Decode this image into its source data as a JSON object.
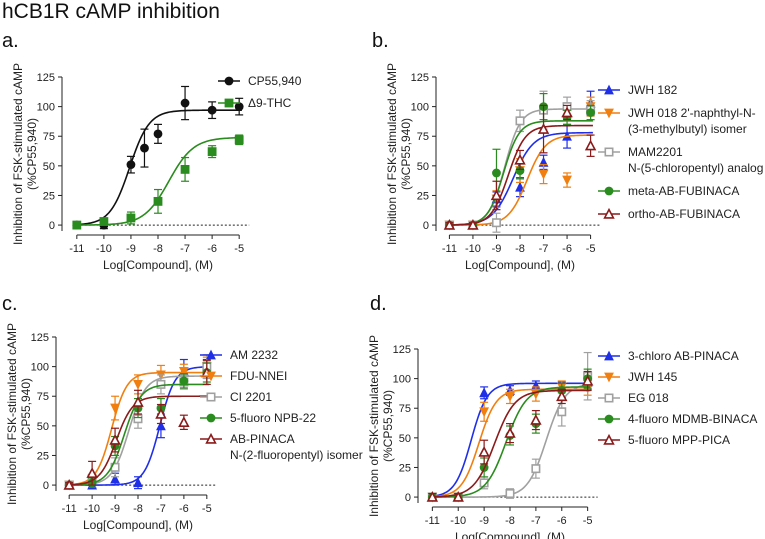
{
  "figure_title": "hCB1R cAMP inhibition",
  "colors": {
    "black": "#111111",
    "green": "#2a8c1e",
    "blue": "#1f2fe8",
    "orange": "#f07f10",
    "gray": "#a0a0a0",
    "darkred": "#8b1a1a",
    "axis": "#222222"
  },
  "chart_data": [
    {
      "id": "a",
      "panel_label": "a.",
      "type": "line",
      "xlabel": "Log[Compound], (M)",
      "ylabel": "Inhibition of FSK-stimulated cAMP",
      "ylabel2": "(%CP55,940)",
      "xlim": [
        -11.4,
        -4.6
      ],
      "ylim": [
        -5,
        125
      ],
      "xticks": [
        -11,
        -10,
        -9,
        -8,
        -7,
        -6,
        -5
      ],
      "yticks": [
        0,
        25,
        50,
        75,
        100,
        125
      ],
      "baseline": 0,
      "series": [
        {
          "name": "CP55,940",
          "color": "#111111",
          "marker": "circle",
          "x": [
            -11,
            -10,
            -9,
            -8.5,
            -8,
            -7,
            -6,
            -5
          ],
          "y": [
            0,
            0,
            51,
            65,
            77,
            103,
            97,
            100
          ],
          "err": [
            3,
            3,
            7,
            16,
            8,
            14,
            7,
            7
          ],
          "fit": {
            "bottom": 0,
            "top": 97,
            "ec50": -9.05,
            "hill": 1.2
          }
        },
        {
          "name": "Δ9-THC",
          "color": "#2a8c1e",
          "marker": "square",
          "x": [
            -11,
            -10,
            -9,
            -8,
            -7,
            -6,
            -5
          ],
          "y": [
            0,
            3,
            6,
            20,
            47,
            62,
            72
          ],
          "err": [
            2,
            3,
            5,
            10,
            10,
            5,
            4
          ],
          "fit": {
            "bottom": 0,
            "top": 74,
            "ec50": -7.6,
            "hill": 0.95
          }
        }
      ]
    },
    {
      "id": "b",
      "panel_label": "b.",
      "type": "line",
      "xlabel": "Log[Compound], (M)",
      "ylabel": "Inhibition of FSK-stimulated cAMP",
      "ylabel2": "(%CP55,940)",
      "xlim": [
        -11.4,
        -4.6
      ],
      "ylim": [
        -5,
        125
      ],
      "xticks": [
        -11,
        -10,
        -9,
        -8,
        -7,
        -6,
        -5
      ],
      "yticks": [
        0,
        25,
        50,
        75,
        100,
        125
      ],
      "baseline": 0,
      "series": [
        {
          "name": "JWH 182",
          "color": "#1f2fe8",
          "marker": "triangle-up",
          "x": [
            -11,
            -10,
            -9,
            -8,
            -7,
            -6,
            -5
          ],
          "y": [
            0,
            0,
            22,
            32,
            53,
            75,
            103
          ],
          "err": [
            2,
            2,
            6,
            8,
            6,
            10,
            10
          ],
          "fit": {
            "bottom": 0,
            "top": 78,
            "ec50": -8.3,
            "hill": 1.0
          }
        },
        {
          "name": "JWH 018 2'-naphthyl-N-(3-methylbutyl) isomer",
          "legend_lines": [
            "JWH 018 2'-naphthyl-N-",
            "(3-methylbutyl) isomer"
          ],
          "color": "#f07f10",
          "marker": "triangle-down",
          "x": [
            -11,
            -10,
            -9,
            -8,
            -7,
            -6,
            -5
          ],
          "y": [
            0,
            0,
            22,
            46,
            43,
            38,
            100
          ],
          "err": [
            2,
            2,
            7,
            10,
            8,
            6,
            8
          ],
          "fit": {
            "bottom": 0,
            "top": 76,
            "ec50": -7.7,
            "hill": 1.1
          }
        },
        {
          "name": "MAM2201 N-(5-chloropentyl) analog",
          "legend_lines": [
            "MAM2201",
            "N-(5-chloropentyl) analog"
          ],
          "color": "#a0a0a0",
          "marker": "square-open",
          "x": [
            -11,
            -10,
            -9,
            -8,
            -7,
            -6,
            -5
          ],
          "y": [
            0,
            0,
            2,
            88,
            97,
            100,
            97
          ],
          "err": [
            2,
            2,
            8,
            9,
            16,
            8,
            8
          ],
          "fit": {
            "bottom": 0,
            "top": 98,
            "ec50": -8.65,
            "hill": 1.3
          }
        },
        {
          "name": "meta-AB-FUBINACA",
          "color": "#2a8c1e",
          "marker": "circle",
          "x": [
            -11,
            -10,
            -9,
            -8,
            -7,
            -6,
            -5
          ],
          "y": [
            0,
            0,
            44,
            46,
            100,
            91,
            95
          ],
          "err": [
            2,
            2,
            20,
            7,
            11,
            6,
            6
          ],
          "fit": {
            "bottom": 0,
            "top": 88,
            "ec50": -8.7,
            "hill": 1.3
          }
        },
        {
          "name": "ortho-AB-FUBINACA",
          "color": "#8b1a1a",
          "marker": "triangle-up-open",
          "x": [
            -11,
            -10,
            -9,
            -8,
            -7,
            -6,
            -5
          ],
          "y": [
            0,
            0,
            25,
            55,
            81,
            95,
            67
          ],
          "err": [
            2,
            2,
            12,
            8,
            20,
            6,
            9
          ],
          "fit": {
            "bottom": 0,
            "top": 84,
            "ec50": -8.5,
            "hill": 1.2
          }
        }
      ]
    },
    {
      "id": "c",
      "panel_label": "c.",
      "type": "line",
      "xlabel": "Log[Compound], (M)",
      "ylabel": "Inhibition of FSK-stimulated cAMP",
      "ylabel2": "(%CP55,940)",
      "xlim": [
        -11.4,
        -4.6
      ],
      "ylim": [
        -5,
        125
      ],
      "xticks": [
        -11,
        -10,
        -9,
        -8,
        -7,
        -6,
        -5
      ],
      "yticks": [
        0,
        25,
        50,
        75,
        100,
        125
      ],
      "baseline": 0,
      "series": [
        {
          "name": "AM 2232",
          "color": "#1f2fe8",
          "marker": "triangle-up",
          "x": [
            -11,
            -10,
            -9,
            -8,
            -7,
            -6,
            -5
          ],
          "y": [
            0,
            0,
            5,
            2,
            50,
            96,
            98
          ],
          "err": [
            2,
            2,
            5,
            5,
            10,
            10,
            8
          ],
          "fit": {
            "bottom": 0,
            "top": 100,
            "ec50": -7.05,
            "hill": 1.3
          }
        },
        {
          "name": "FDU-NNEI",
          "color": "#f07f10",
          "marker": "triangle-down",
          "x": [
            -11,
            -10,
            -9,
            -8,
            -7,
            -6,
            -5
          ],
          "y": [
            0,
            5,
            65,
            85,
            93,
            96,
            100
          ],
          "err": [
            2,
            4,
            10,
            8,
            8,
            6,
            8
          ],
          "fit": {
            "bottom": 0,
            "top": 95,
            "ec50": -9.15,
            "hill": 1.3
          }
        },
        {
          "name": "CI 2201",
          "color": "#a0a0a0",
          "marker": "square-open",
          "x": [
            -11,
            -10,
            -9,
            -8,
            -7,
            -6,
            -5
          ],
          "y": [
            0,
            5,
            15,
            56,
            85,
            87,
            100
          ],
          "err": [
            2,
            4,
            8,
            8,
            8,
            6,
            10
          ],
          "fit": {
            "bottom": 0,
            "top": 92,
            "ec50": -8.4,
            "hill": 1.2
          }
        },
        {
          "name": "5-fluoro NPB-22",
          "color": "#2a8c1e",
          "marker": "circle",
          "x": [
            -11,
            -10,
            -9,
            -8,
            -7,
            -6,
            -5
          ],
          "y": [
            0,
            2,
            33,
            65,
            65,
            88,
            95
          ],
          "err": [
            2,
            4,
            8,
            8,
            8,
            6,
            8
          ],
          "fit": {
            "bottom": 0,
            "top": 85,
            "ec50": -8.6,
            "hill": 1.2
          }
        },
        {
          "name": "AB-PINACA N-(2-fluoropentyl) isomer",
          "legend_lines": [
            "AB-PINACA",
            "N-(2-fluoropentyl) isomer"
          ],
          "color": "#8b1a1a",
          "marker": "triangle-up-open",
          "x": [
            -11,
            -10,
            -9,
            -8,
            -7,
            -6,
            -5
          ],
          "y": [
            0,
            10,
            38,
            70,
            60,
            53,
            95
          ],
          "err": [
            2,
            10,
            10,
            10,
            8,
            6,
            10
          ],
          "fit": {
            "bottom": 0,
            "top": 75,
            "ec50": -8.95,
            "hill": 1.2
          }
        }
      ]
    },
    {
      "id": "d",
      "panel_label": "d.",
      "type": "line",
      "xlabel": "Log[Compound], (M)",
      "ylabel": "Inhibition of FSK-stimulated cAMP",
      "ylabel2": "(%CP55,940)",
      "xlim": [
        -11.4,
        -4.6
      ],
      "ylim": [
        -5,
        125
      ],
      "xticks": [
        -11,
        -10,
        -9,
        -8,
        -7,
        -6,
        -5
      ],
      "yticks": [
        0,
        25,
        50,
        75,
        100,
        125
      ],
      "baseline": 0,
      "series": [
        {
          "name": "3-chloro AB-PINACA",
          "color": "#1f2fe8",
          "marker": "triangle-up",
          "x": [
            -11,
            -10,
            -9,
            -8,
            -7,
            -6,
            -5
          ],
          "y": [
            0,
            0,
            88,
            90,
            94,
            93,
            97
          ],
          "err": [
            3,
            3,
            5,
            4,
            4,
            4,
            6
          ],
          "fit": {
            "bottom": 0,
            "top": 96,
            "ec50": -9.5,
            "hill": 1.4
          }
        },
        {
          "name": "JWH 145",
          "color": "#f07f10",
          "marker": "triangle-down",
          "x": [
            -11,
            -10,
            -9,
            -8,
            -7,
            -6,
            -5
          ],
          "y": [
            0,
            0,
            72,
            85,
            87,
            93,
            92
          ],
          "err": [
            3,
            3,
            8,
            6,
            6,
            5,
            6
          ],
          "fit": {
            "bottom": 0,
            "top": 91,
            "ec50": -9.2,
            "hill": 1.3
          }
        },
        {
          "name": "EG 018",
          "color": "#a0a0a0",
          "marker": "square-open",
          "x": [
            -11,
            -10,
            -9,
            -8,
            -7,
            -6,
            -5
          ],
          "y": [
            0,
            0,
            12,
            3,
            24,
            72,
            102
          ],
          "err": [
            3,
            3,
            5,
            4,
            8,
            12,
            20
          ],
          "fit": {
            "bottom": 0,
            "top": 96,
            "ec50": -6.6,
            "hill": 1.2
          }
        },
        {
          "name": "4-fluoro MDMB-BINACA",
          "color": "#2a8c1e",
          "marker": "circle",
          "x": [
            -11,
            -10,
            -9,
            -8,
            -7,
            -6,
            -5
          ],
          "y": [
            0,
            0,
            25,
            52,
            62,
            90,
            100
          ],
          "err": [
            3,
            3,
            8,
            8,
            8,
            6,
            8
          ],
          "fit": {
            "bottom": 0,
            "top": 93,
            "ec50": -8.15,
            "hill": 1.1
          }
        },
        {
          "name": "5-fluoro MPP-PICA",
          "color": "#8b1a1a",
          "marker": "triangle-up-open",
          "x": [
            -11,
            -10,
            -9,
            -8,
            -7,
            -6,
            -5
          ],
          "y": [
            0,
            0,
            38,
            54,
            65,
            85,
            98
          ],
          "err": [
            3,
            3,
            10,
            8,
            8,
            6,
            8
          ],
          "fit": {
            "bottom": 0,
            "top": 90,
            "ec50": -8.6,
            "hill": 1.1
          }
        }
      ]
    }
  ]
}
